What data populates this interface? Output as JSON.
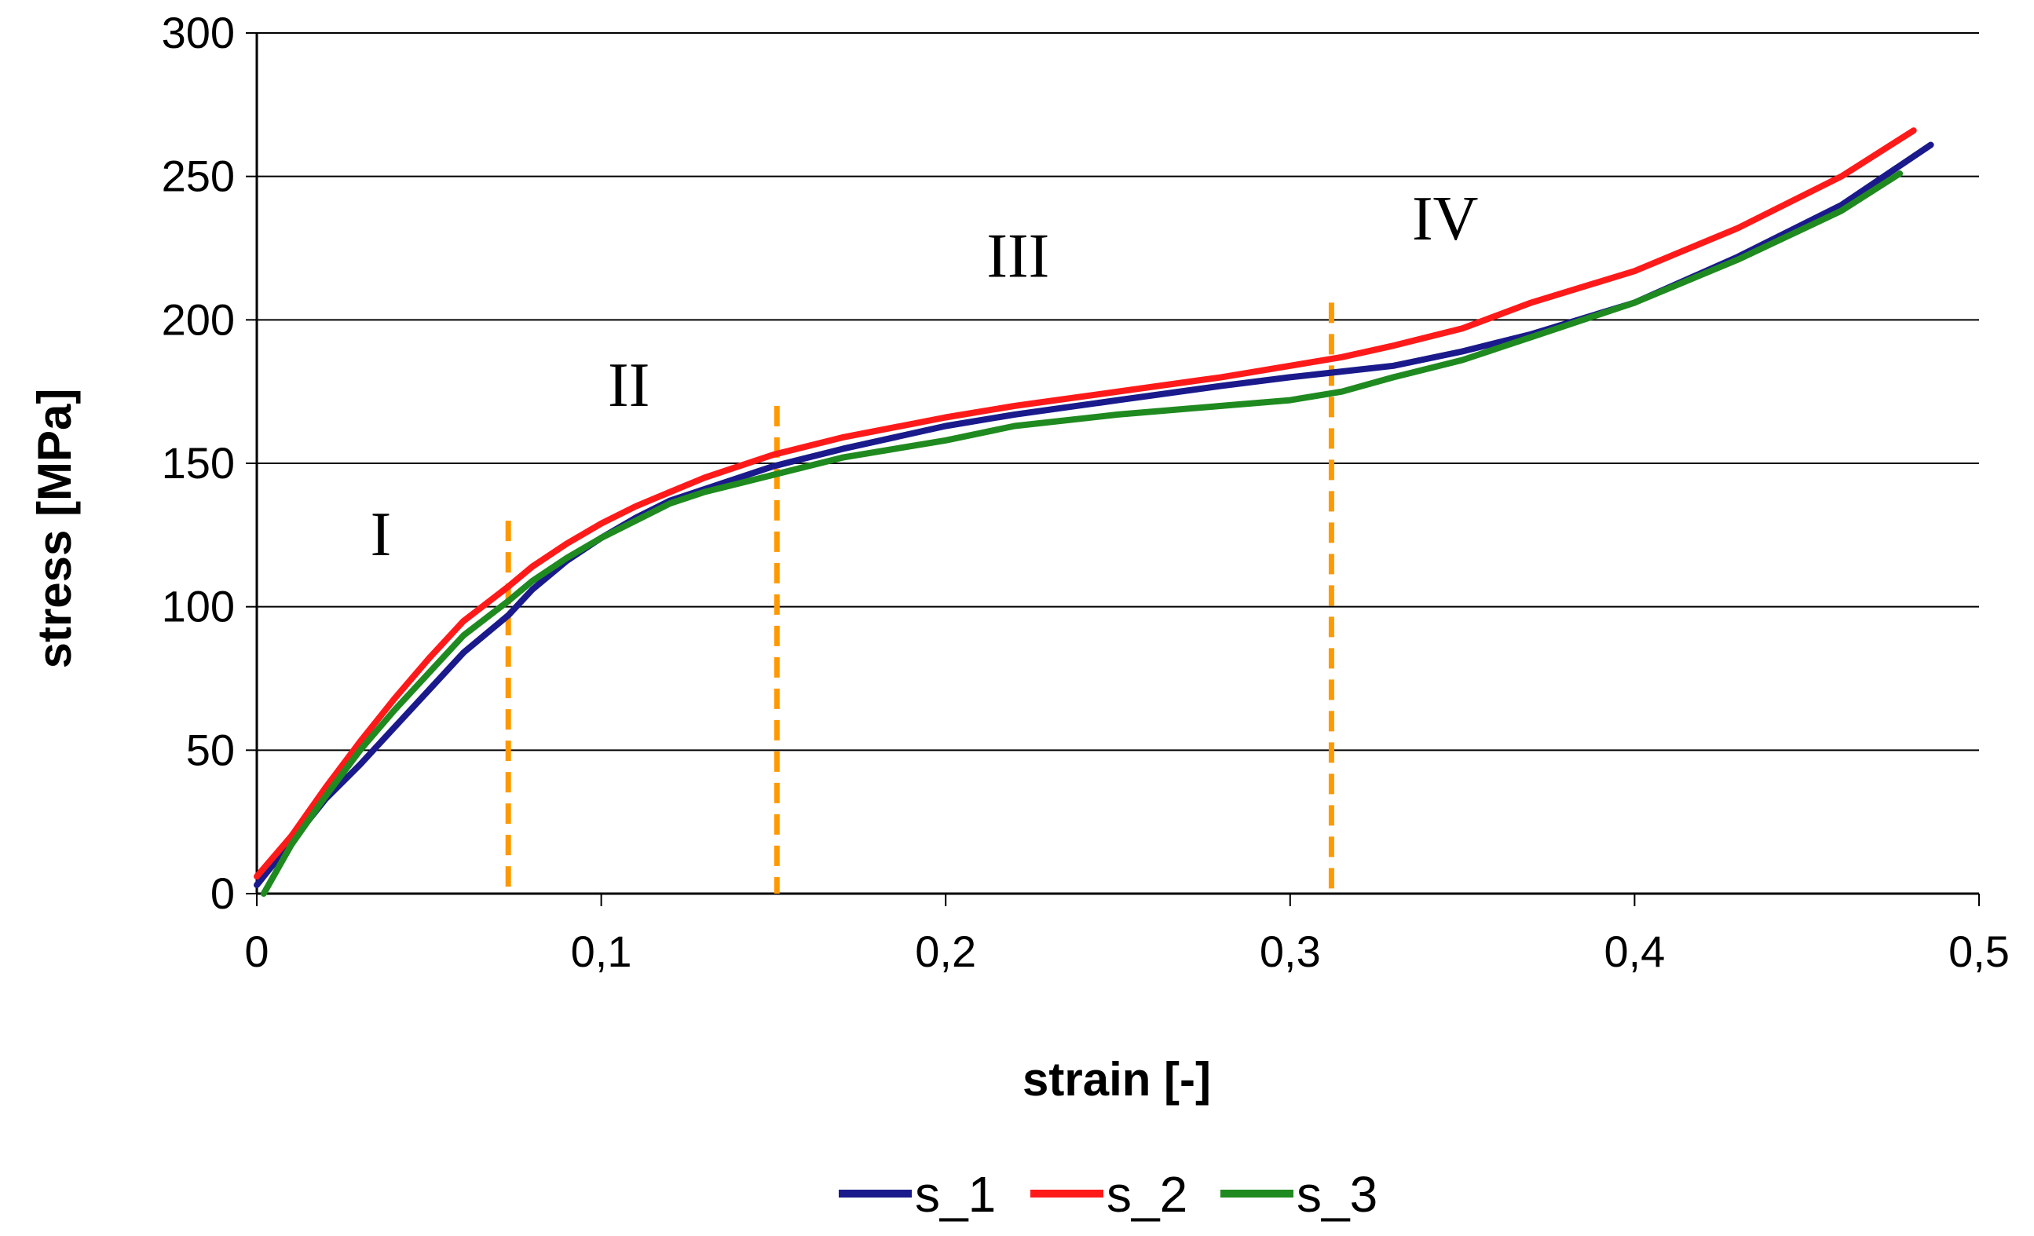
{
  "chart_data": {
    "type": "line",
    "title": "",
    "xlabel": "strain [-]",
    "ylabel": "stress [MPa]",
    "xlim": [
      0,
      0.5
    ],
    "ylim": [
      0,
      300
    ],
    "xticks": [
      0,
      0.1,
      0.2,
      0.3,
      0.4,
      0.5
    ],
    "xtick_labels": [
      "0",
      "0,1",
      "0,2",
      "0,3",
      "0,4",
      "0,5"
    ],
    "yticks": [
      0,
      50,
      100,
      150,
      200,
      250,
      300
    ],
    "ytick_labels": [
      "0",
      "50",
      "100",
      "150",
      "200",
      "250",
      "300"
    ],
    "grid": "horizontal",
    "legend_position": "bottom",
    "series": [
      {
        "name": "s_1",
        "color": "#1a1a8c",
        "points": [
          [
            0.0,
            3
          ],
          [
            0.01,
            18
          ],
          [
            0.02,
            33
          ],
          [
            0.03,
            45
          ],
          [
            0.04,
            58
          ],
          [
            0.05,
            71
          ],
          [
            0.06,
            84
          ],
          [
            0.073,
            97
          ],
          [
            0.08,
            106
          ],
          [
            0.09,
            116
          ],
          [
            0.1,
            124
          ],
          [
            0.11,
            131
          ],
          [
            0.12,
            137
          ],
          [
            0.13,
            141
          ],
          [
            0.14,
            145
          ],
          [
            0.15,
            149
          ],
          [
            0.17,
            155
          ],
          [
            0.2,
            163
          ],
          [
            0.22,
            167
          ],
          [
            0.25,
            172
          ],
          [
            0.28,
            177
          ],
          [
            0.3,
            180
          ],
          [
            0.315,
            182
          ],
          [
            0.33,
            184
          ],
          [
            0.35,
            189
          ],
          [
            0.37,
            195
          ],
          [
            0.4,
            206
          ],
          [
            0.43,
            222
          ],
          [
            0.46,
            240
          ],
          [
            0.486,
            261
          ]
        ]
      },
      {
        "name": "s_2",
        "color": "#ff1a1a",
        "points": [
          [
            0.0,
            6
          ],
          [
            0.01,
            20
          ],
          [
            0.02,
            37
          ],
          [
            0.03,
            53
          ],
          [
            0.04,
            68
          ],
          [
            0.05,
            82
          ],
          [
            0.06,
            95
          ],
          [
            0.073,
            107
          ],
          [
            0.08,
            114
          ],
          [
            0.09,
            122
          ],
          [
            0.1,
            129
          ],
          [
            0.11,
            135
          ],
          [
            0.12,
            140
          ],
          [
            0.13,
            145
          ],
          [
            0.14,
            149
          ],
          [
            0.15,
            153
          ],
          [
            0.17,
            159
          ],
          [
            0.2,
            166
          ],
          [
            0.22,
            170
          ],
          [
            0.25,
            175
          ],
          [
            0.28,
            180
          ],
          [
            0.3,
            184
          ],
          [
            0.315,
            187
          ],
          [
            0.33,
            191
          ],
          [
            0.35,
            197
          ],
          [
            0.37,
            206
          ],
          [
            0.4,
            217
          ],
          [
            0.43,
            232
          ],
          [
            0.46,
            250
          ],
          [
            0.481,
            266
          ]
        ]
      },
      {
        "name": "s_3",
        "color": "#1f8a1f",
        "points": [
          [
            0.002,
            0
          ],
          [
            0.01,
            17
          ],
          [
            0.02,
            34
          ],
          [
            0.03,
            50
          ],
          [
            0.04,
            64
          ],
          [
            0.05,
            77
          ],
          [
            0.06,
            90
          ],
          [
            0.073,
            102
          ],
          [
            0.08,
            109
          ],
          [
            0.09,
            117
          ],
          [
            0.1,
            124
          ],
          [
            0.11,
            130
          ],
          [
            0.12,
            136
          ],
          [
            0.13,
            140
          ],
          [
            0.14,
            143
          ],
          [
            0.15,
            146
          ],
          [
            0.17,
            152
          ],
          [
            0.2,
            158
          ],
          [
            0.22,
            163
          ],
          [
            0.25,
            167
          ],
          [
            0.28,
            170
          ],
          [
            0.3,
            172
          ],
          [
            0.315,
            175
          ],
          [
            0.33,
            180
          ],
          [
            0.35,
            186
          ],
          [
            0.37,
            194
          ],
          [
            0.4,
            206
          ],
          [
            0.43,
            221
          ],
          [
            0.46,
            238
          ],
          [
            0.477,
            251
          ]
        ]
      }
    ],
    "boundaries": {
      "color": "#ff9900",
      "lines": [
        {
          "x": 0.073,
          "y_top": 130
        },
        {
          "x": 0.151,
          "y_top": 170
        },
        {
          "x": 0.312,
          "y_top": 206
        }
      ]
    },
    "regions": [
      {
        "label": "I",
        "x": 0.036,
        "y": 118
      },
      {
        "label": "II",
        "x": 0.108,
        "y": 170
      },
      {
        "label": "III",
        "x": 0.221,
        "y": 215
      },
      {
        "label": "IV",
        "x": 0.345,
        "y": 228
      }
    ]
  }
}
